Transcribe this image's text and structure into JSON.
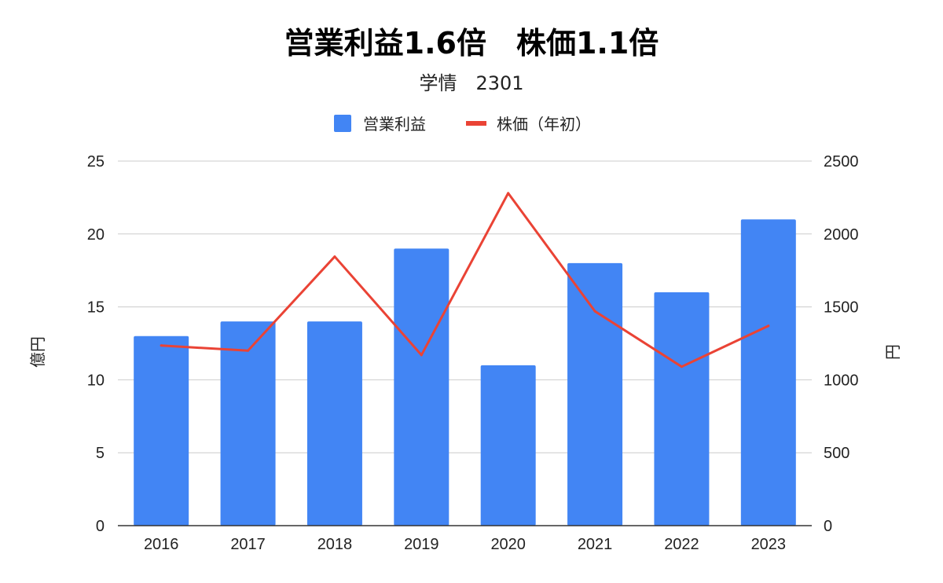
{
  "chart_data": {
    "type": "bar",
    "title": "営業利益1.6倍　株価1.1倍",
    "subtitle": "学情　2301",
    "categories": [
      "2016",
      "2017",
      "2018",
      "2019",
      "2020",
      "2021",
      "2022",
      "2023"
    ],
    "series": [
      {
        "name": "営業利益",
        "type": "bar",
        "axis": "left",
        "color": "#4285F4",
        "values": [
          13,
          14,
          14,
          19,
          11,
          18,
          16,
          21
        ]
      },
      {
        "name": "株価（年初）",
        "type": "line",
        "axis": "right",
        "color": "#EA4335",
        "values": [
          1235,
          1200,
          1845,
          1170,
          2280,
          1470,
          1090,
          1370
        ]
      }
    ],
    "ylabel_left": "億円",
    "ylabel_right": "円",
    "ylim_left": [
      0,
      25
    ],
    "ylim_right": [
      0,
      2500
    ],
    "yticks_left": [
      "0",
      "5",
      "10",
      "15",
      "20",
      "25"
    ],
    "yticks_right": [
      "0",
      "500",
      "1000",
      "1500",
      "2000",
      "2500"
    ],
    "legend_position": "top-center",
    "grid": true
  }
}
